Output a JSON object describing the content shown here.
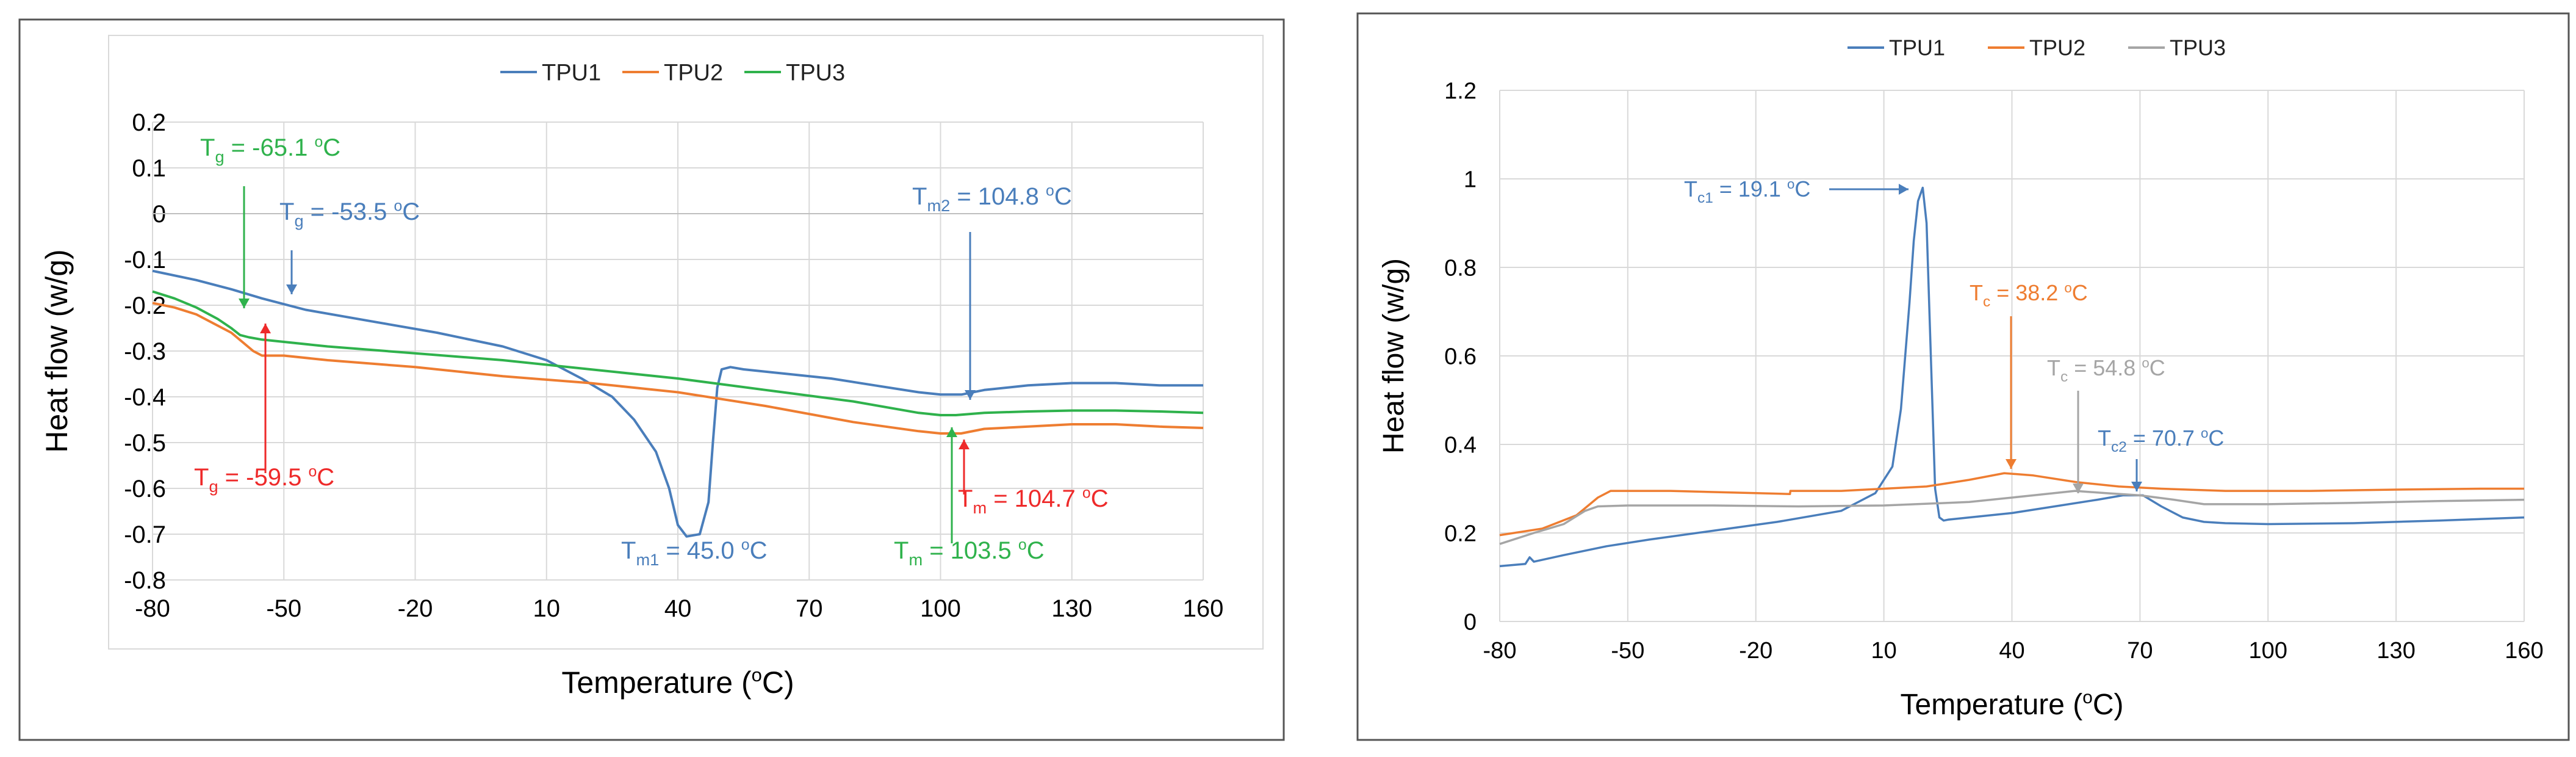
{
  "colors": {
    "blue": "#4a7ebb",
    "orange": "#ee7d31",
    "green": "#2fb24c",
    "gray": "#a5a5a5",
    "red": "#ee2a2a",
    "grid": "#d9d9d9"
  },
  "chart_data": [
    {
      "type": "line",
      "xlabel": "Temperature (oC)",
      "ylabel": "Heat flow (w/g)",
      "xlim": [
        -80,
        160
      ],
      "ylim": [
        -0.8,
        0.2
      ],
      "xticks": [
        "-80",
        "-50",
        "-20",
        "10",
        "40",
        "70",
        "100",
        "130",
        "160"
      ],
      "yticks": [
        "0.2",
        "0.1",
        "0",
        "-0.1",
        "-0.2",
        "-0.3",
        "-0.4",
        "-0.5",
        "-0.6",
        "-0.7",
        "-0.8"
      ],
      "legend": [
        "TPU1",
        "TPU2",
        "TPU3"
      ],
      "series": [
        {
          "name": "TPU1",
          "color": "blue",
          "x": [
            -80,
            -70,
            -62,
            -55,
            -45,
            -30,
            -15,
            0,
            10,
            18,
            25,
            30,
            35,
            38,
            40,
            42,
            45,
            47,
            48,
            49,
            50,
            52,
            55,
            65,
            75,
            85,
            95,
            100,
            104.8,
            110,
            120,
            130,
            140,
            150,
            160
          ],
          "y": [
            -0.125,
            -0.145,
            -0.165,
            -0.185,
            -0.21,
            -0.235,
            -0.26,
            -0.29,
            -0.32,
            -0.36,
            -0.4,
            -0.45,
            -0.52,
            -0.6,
            -0.68,
            -0.705,
            -0.7,
            -0.63,
            -0.5,
            -0.38,
            -0.34,
            -0.335,
            -0.34,
            -0.35,
            -0.36,
            -0.375,
            -0.39,
            -0.395,
            -0.395,
            -0.385,
            -0.375,
            -0.37,
            -0.37,
            -0.375,
            -0.375
          ]
        },
        {
          "name": "TPU2",
          "color": "orange",
          "x": [
            -80,
            -75,
            -70,
            -66,
            -62,
            -59.5,
            -57,
            -55,
            -53,
            -50,
            -40,
            -20,
            0,
            20,
            40,
            60,
            80,
            95,
            100,
            104.7,
            110,
            120,
            130,
            140,
            150,
            160
          ],
          "y": [
            -0.195,
            -0.205,
            -0.22,
            -0.24,
            -0.26,
            -0.28,
            -0.3,
            -0.31,
            -0.31,
            -0.31,
            -0.32,
            -0.335,
            -0.355,
            -0.37,
            -0.39,
            -0.42,
            -0.455,
            -0.475,
            -0.48,
            -0.48,
            -0.47,
            -0.465,
            -0.46,
            -0.46,
            -0.465,
            -0.468
          ]
        },
        {
          "name": "TPU3",
          "color": "green",
          "x": [
            -80,
            -75,
            -70,
            -65.1,
            -62,
            -60,
            -58,
            -55,
            -50,
            -40,
            -20,
            0,
            20,
            40,
            60,
            80,
            95,
            100,
            103.5,
            110,
            120,
            130,
            140,
            150,
            160
          ],
          "y": [
            -0.17,
            -0.185,
            -0.205,
            -0.23,
            -0.25,
            -0.265,
            -0.27,
            -0.275,
            -0.28,
            -0.29,
            -0.305,
            -0.32,
            -0.34,
            -0.36,
            -0.385,
            -0.41,
            -0.435,
            -0.44,
            -0.44,
            -0.435,
            -0.432,
            -0.43,
            -0.43,
            -0.432,
            -0.435
          ]
        }
      ],
      "annotations": [
        {
          "sym": "T",
          "sub": "g",
          "text": " = -65.1 ",
          "unit": "o",
          "tail": "C",
          "color": "green",
          "x": -65.1,
          "y": -0.23
        },
        {
          "sym": "T",
          "sub": "g",
          "text": " = -53.5 ",
          "unit": "o",
          "tail": "C",
          "color": "blue",
          "x": -53.5,
          "y": -0.17
        },
        {
          "sym": "T",
          "sub": "g",
          "text": " = -59.5 ",
          "unit": "o",
          "tail": "C",
          "color": "red",
          "x": -59.5,
          "y": -0.28
        },
        {
          "sym": "T",
          "sub": "m2",
          "text": " = 104.8 ",
          "unit": "o",
          "tail": "C",
          "color": "blue",
          "x": 104.8,
          "y": -0.395
        },
        {
          "sym": "T",
          "sub": "m1",
          "text": " = 45.0 ",
          "unit": "o",
          "tail": "C",
          "color": "blue",
          "x": 45.0,
          "y": -0.7
        },
        {
          "sym": "T",
          "sub": "m",
          "text": " = 104.7 ",
          "unit": "o",
          "tail": "C",
          "color": "red",
          "x": 104.7,
          "y": -0.48
        },
        {
          "sym": "T",
          "sub": "m",
          "text": " = 103.5 ",
          "unit": "o",
          "tail": "C",
          "color": "green",
          "x": 103.5,
          "y": -0.44
        }
      ]
    },
    {
      "type": "line",
      "xlabel": "Temperature (oC)",
      "ylabel": "Heat flow (w/g)",
      "xlim": [
        -80,
        160
      ],
      "ylim": [
        0,
        1.2
      ],
      "xticks": [
        "-80",
        "-50",
        "-20",
        "10",
        "40",
        "70",
        "100",
        "130",
        "160"
      ],
      "yticks": [
        "1.2",
        "1",
        "0.8",
        "0.6",
        "0.4",
        "0.2",
        "0"
      ],
      "legend": [
        "TPU1",
        "TPU2",
        "TPU3"
      ],
      "series": [
        {
          "name": "TPU1",
          "color": "blue",
          "x": [
            -80,
            -74,
            -73,
            -72,
            -65,
            -55,
            -45,
            -30,
            -15,
            0,
            8,
            12,
            14,
            16,
            17,
            18,
            19.1,
            20,
            21,
            22,
            23,
            24,
            25,
            30,
            40,
            50,
            60,
            66,
            70.7,
            75,
            80,
            85,
            90,
            100,
            120,
            140,
            160
          ],
          "y": [
            0.125,
            0.13,
            0.145,
            0.135,
            0.15,
            0.17,
            0.185,
            0.205,
            0.225,
            0.25,
            0.29,
            0.35,
            0.48,
            0.72,
            0.86,
            0.95,
            0.98,
            0.9,
            0.6,
            0.3,
            0.235,
            0.228,
            0.23,
            0.235,
            0.245,
            0.26,
            0.275,
            0.285,
            0.285,
            0.26,
            0.235,
            0.225,
            0.222,
            0.22,
            0.222,
            0.228,
            0.235
          ]
        },
        {
          "name": "TPU2",
          "color": "orange",
          "x": [
            -80,
            -70,
            -62,
            -57,
            -54,
            -50,
            -40,
            -20,
            -12,
            -11.9,
            0,
            10,
            20,
            30,
            38.2,
            45,
            55,
            65,
            75,
            90,
            110,
            130,
            150,
            160
          ],
          "y": [
            0.195,
            0.21,
            0.24,
            0.28,
            0.295,
            0.295,
            0.295,
            0.29,
            0.288,
            0.295,
            0.295,
            0.3,
            0.305,
            0.32,
            0.335,
            0.33,
            0.315,
            0.305,
            0.3,
            0.295,
            0.295,
            0.298,
            0.3,
            0.3
          ]
        },
        {
          "name": "TPU3",
          "color": "gray",
          "x": [
            -80,
            -72,
            -65,
            -60,
            -57,
            -50,
            -30,
            -10,
            10,
            30,
            45,
            54.8,
            62,
            70,
            78,
            85,
            100,
            120,
            140,
            160
          ],
          "y": [
            0.175,
            0.2,
            0.22,
            0.25,
            0.26,
            0.262,
            0.262,
            0.26,
            0.262,
            0.27,
            0.285,
            0.295,
            0.29,
            0.285,
            0.275,
            0.265,
            0.265,
            0.268,
            0.272,
            0.275
          ]
        }
      ],
      "annotations": [
        {
          "sym": "T",
          "sub": "c1",
          "text": " = 19.1 ",
          "unit": "o",
          "tail": "C",
          "color": "blue",
          "x": 19.1,
          "y": 0.98
        },
        {
          "sym": "T",
          "sub": "c",
          "text": " = 38.2 ",
          "unit": "o",
          "tail": "C",
          "color": "orange",
          "x": 38.2,
          "y": 0.335
        },
        {
          "sym": "T",
          "sub": "c",
          "text": " = 54.8 ",
          "unit": "o",
          "tail": "C",
          "color": "gray",
          "x": 54.8,
          "y": 0.295
        },
        {
          "sym": "T",
          "sub": "c2",
          "text": " = 70.7 ",
          "unit": "o",
          "tail": "C",
          "color": "blue",
          "x": 70.7,
          "y": 0.285
        }
      ]
    }
  ]
}
